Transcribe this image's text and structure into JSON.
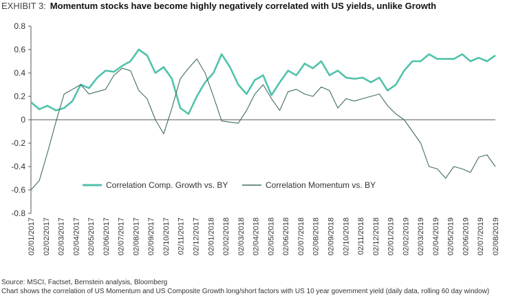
{
  "header": {
    "exhibit_label": "EXHIBIT 3:",
    "title": "Momentum stocks have become highly negatively correlated with US yields, unlike Growth"
  },
  "footer": {
    "source": "Source: MSCI, Factset, Bernstein analysis, Bloomberg",
    "note": "Chart shows the correlation of US Momentum and US Composite Growth long/short factors with US 10 year government yield (daily data, rolling 60 day window)"
  },
  "colors": {
    "growth": "#4fc2ab",
    "momentum": "#3f6b60",
    "axis": "#555555"
  },
  "chart_data": {
    "type": "line",
    "ylim": [
      -0.8,
      0.8
    ],
    "y_ticks": [
      "0.8",
      "0.6",
      "0.4",
      "0.2",
      "0",
      "-0.2",
      "-0.4",
      "-0.6",
      "-0.8"
    ],
    "x_tick_labels": [
      "02/01/2017",
      "02/02/2017",
      "02/03/2017",
      "02/04/2017",
      "02/05/2017",
      "02/06/2017",
      "02/07/2017",
      "02/08/2017",
      "02/09/2017",
      "02/10/2017",
      "02/11/2017",
      "02/12/2017",
      "02/01/2018",
      "02/02/2018",
      "02/03/2018",
      "02/04/2018",
      "02/05/2018",
      "02/06/2018",
      "02/07/2018",
      "02/08/2018",
      "02/09/2018",
      "02/10/2018",
      "02/11/2018",
      "02/12/2018",
      "02/01/2019",
      "02/02/2019",
      "02/03/2019",
      "02/04/2019",
      "02/05/2019",
      "02/06/2019",
      "02/07/2019",
      "02/08/2019"
    ],
    "legend_position": "inside-lower-left",
    "series": [
      {
        "name": "Correlation Comp. Growth vs. BY",
        "values": [
          0.15,
          0.09,
          0.12,
          0.08,
          0.1,
          0.16,
          0.3,
          0.27,
          0.36,
          0.42,
          0.41,
          0.46,
          0.5,
          0.6,
          0.55,
          0.4,
          0.45,
          0.35,
          0.1,
          0.05,
          0.2,
          0.32,
          0.4,
          0.56,
          0.45,
          0.3,
          0.22,
          0.34,
          0.38,
          0.21,
          0.32,
          0.42,
          0.38,
          0.48,
          0.44,
          0.5,
          0.38,
          0.42,
          0.36,
          0.35,
          0.36,
          0.32,
          0.36,
          0.25,
          0.3,
          0.42,
          0.5,
          0.5,
          0.56,
          0.52,
          0.52,
          0.52,
          0.56,
          0.5,
          0.53,
          0.5,
          0.55
        ]
      },
      {
        "name": "Correlation Momentum vs. BY",
        "values": [
          -0.6,
          -0.52,
          -0.28,
          -0.02,
          0.22,
          0.26,
          0.3,
          0.22,
          0.24,
          0.26,
          0.38,
          0.44,
          0.42,
          0.25,
          0.18,
          0.0,
          -0.12,
          0.1,
          0.35,
          0.44,
          0.52,
          0.4,
          0.2,
          -0.01,
          -0.02,
          -0.03,
          0.08,
          0.22,
          0.3,
          0.18,
          0.08,
          0.24,
          0.26,
          0.22,
          0.2,
          0.28,
          0.25,
          0.1,
          0.18,
          0.16,
          0.18,
          0.2,
          0.22,
          0.12,
          0.05,
          0.0,
          -0.1,
          -0.2,
          -0.4,
          -0.42,
          -0.5,
          -0.4,
          -0.42,
          -0.45,
          -0.32,
          -0.3,
          -0.4
        ]
      }
    ]
  }
}
